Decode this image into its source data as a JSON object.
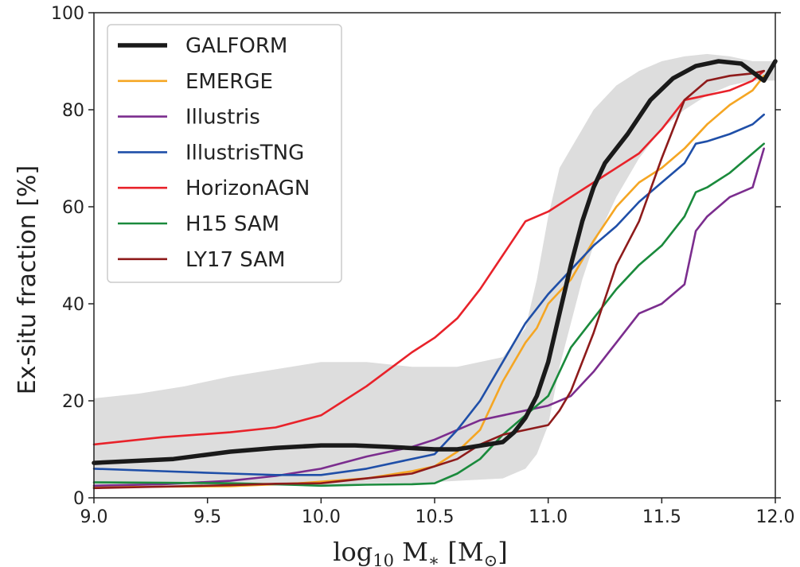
{
  "chart_data": {
    "type": "line",
    "xlabel": "log10 M* [M☉]",
    "ylabel": "Ex-situ fraction [%]",
    "xlim": [
      9.0,
      12.0
    ],
    "ylim": [
      0,
      100
    ],
    "xticks": [
      "9.0",
      "9.5",
      "10.0",
      "10.5",
      "11.0",
      "11.5",
      "12.0"
    ],
    "yticks": [
      "0",
      "20",
      "40",
      "60",
      "80",
      "100"
    ],
    "grid": false,
    "legend": "upper-left",
    "band": {
      "color": "#dddddd",
      "x": [
        9.0,
        9.2,
        9.4,
        9.6,
        9.8,
        10.0,
        10.2,
        10.4,
        10.6,
        10.8,
        10.9,
        10.95,
        11.0,
        11.05,
        11.1,
        11.15,
        11.2,
        11.3,
        11.4,
        11.5,
        11.6,
        11.7,
        11.8,
        11.9,
        12.0
      ],
      "upper": [
        20.5,
        21.5,
        23,
        25,
        26.5,
        28,
        28,
        27,
        27,
        29,
        35,
        45,
        58,
        68,
        72,
        76,
        80,
        85,
        88,
        90,
        91,
        91.5,
        91,
        90,
        90
      ],
      "lower": [
        2.5,
        2.5,
        2.5,
        2.5,
        2.5,
        2.5,
        3,
        3,
        3.5,
        4,
        6,
        9,
        15,
        27,
        36,
        45,
        52,
        62,
        70,
        76,
        80,
        83,
        85,
        86,
        86
      ]
    },
    "series": [
      {
        "name": "GALFORM",
        "color": "#1a1a1a",
        "width": 5.5,
        "x": [
          9.0,
          9.35,
          9.6,
          9.8,
          10.0,
          10.15,
          10.3,
          10.5,
          10.6,
          10.8,
          10.85,
          10.9,
          10.95,
          11.0,
          11.05,
          11.1,
          11.15,
          11.2,
          11.25,
          11.35,
          11.45,
          11.55,
          11.65,
          11.75,
          11.85,
          11.95,
          12.0
        ],
        "y": [
          7.2,
          8,
          9.5,
          10.3,
          10.8,
          10.8,
          10.5,
          10,
          10,
          11.5,
          13.5,
          16.5,
          21,
          28,
          38,
          48,
          57,
          64,
          69,
          75,
          82,
          86.5,
          89,
          90,
          89.5,
          86,
          90
        ]
      },
      {
        "name": "EMERGE",
        "color": "#f5a623",
        "width": 2.6,
        "x": [
          9.0,
          9.3,
          9.6,
          9.9,
          10.2,
          10.4,
          10.5,
          10.6,
          10.7,
          10.8,
          10.9,
          10.95,
          11.0,
          11.1,
          11.2,
          11.3,
          11.4,
          11.5,
          11.6,
          11.7,
          11.8,
          11.9,
          11.95
        ],
        "y": [
          2.2,
          2.3,
          2.4,
          3,
          4,
          5.5,
          6.5,
          9.5,
          14,
          24,
          32,
          35,
          40,
          45,
          53,
          60,
          65,
          68,
          72,
          77,
          81,
          84,
          87
        ]
      },
      {
        "name": "Illustris",
        "color": "#7b2d8e",
        "width": 2.6,
        "x": [
          9.0,
          9.3,
          9.6,
          9.8,
          10.0,
          10.2,
          10.4,
          10.5,
          10.6,
          10.7,
          10.8,
          10.9,
          11.0,
          11.1,
          11.2,
          11.3,
          11.4,
          11.5,
          11.6,
          11.65,
          11.7,
          11.8,
          11.9,
          11.95
        ],
        "y": [
          2.5,
          2.8,
          3.5,
          4.5,
          6,
          8.5,
          10.5,
          12,
          14,
          16,
          17,
          18,
          19,
          21,
          26,
          32,
          38,
          40,
          44,
          55,
          58,
          62,
          64,
          72
        ]
      },
      {
        "name": "IllustrisTNG",
        "color": "#1f4fa8",
        "width": 2.6,
        "x": [
          9.0,
          9.3,
          9.6,
          9.8,
          10.0,
          10.2,
          10.4,
          10.5,
          10.6,
          10.7,
          10.8,
          10.9,
          11.0,
          11.1,
          11.2,
          11.3,
          11.4,
          11.5,
          11.6,
          11.65,
          11.7,
          11.8,
          11.9,
          11.95
        ],
        "y": [
          6,
          5.5,
          5,
          4.7,
          4.7,
          6,
          8,
          9,
          14,
          20,
          28,
          36,
          42,
          47,
          52,
          56,
          61,
          65,
          69,
          73,
          73.5,
          75,
          77,
          79
        ]
      },
      {
        "name": "HorizonAGN",
        "color": "#e8222a",
        "width": 2.6,
        "x": [
          9.0,
          9.3,
          9.6,
          9.8,
          10.0,
          10.2,
          10.4,
          10.5,
          10.6,
          10.7,
          10.8,
          10.9,
          11.0,
          11.1,
          11.2,
          11.3,
          11.4,
          11.5,
          11.6,
          11.7,
          11.8,
          11.9,
          11.95
        ],
        "y": [
          11,
          12.5,
          13.5,
          14.5,
          17,
          23,
          30,
          33,
          37,
          43,
          50,
          57,
          59,
          62,
          65,
          68,
          71,
          76,
          82,
          83,
          84,
          86,
          88
        ]
      },
      {
        "name": "H15 SAM",
        "color": "#1a8a3c",
        "width": 2.6,
        "x": [
          9.0,
          9.3,
          9.6,
          9.8,
          10.0,
          10.2,
          10.4,
          10.5,
          10.6,
          10.7,
          10.8,
          10.9,
          11.0,
          11.1,
          11.2,
          11.3,
          11.4,
          11.5,
          11.6,
          11.65,
          11.7,
          11.8,
          11.9,
          11.95
        ],
        "y": [
          3.2,
          3.1,
          3,
          2.8,
          2.5,
          2.7,
          2.8,
          3,
          5,
          8,
          13,
          17,
          21,
          31,
          37,
          43,
          48,
          52,
          58,
          63,
          64,
          67,
          71,
          73
        ]
      },
      {
        "name": "LY17 SAM",
        "color": "#8e1b1b",
        "width": 2.6,
        "x": [
          9.0,
          9.3,
          9.6,
          9.8,
          10.0,
          10.2,
          10.4,
          10.5,
          10.6,
          10.7,
          10.8,
          10.9,
          11.0,
          11.05,
          11.1,
          11.2,
          11.3,
          11.4,
          11.5,
          11.55,
          11.6,
          11.7,
          11.8,
          11.9,
          11.95
        ],
        "y": [
          2,
          2.3,
          2.6,
          2.9,
          3,
          4,
          5,
          6.5,
          8,
          11,
          13,
          14,
          15,
          18,
          22,
          34,
          48,
          57,
          70,
          76,
          82,
          86,
          87,
          87.5,
          88
        ]
      }
    ]
  }
}
